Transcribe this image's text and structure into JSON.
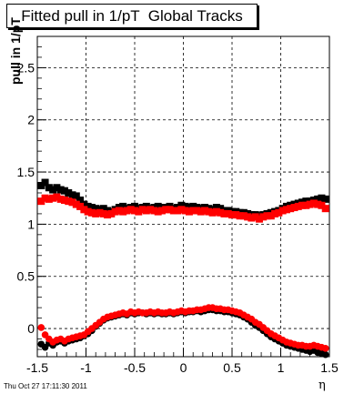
{
  "chart_data": {
    "type": "scatter",
    "title": "Fitted pull in 1/pT  Global Tracks",
    "xlabel": "η",
    "ylabel": "pull in 1/pT",
    "timestamp": "Thu Oct 27 17:11:30 2011",
    "xlim": [
      -1.5,
      1.5
    ],
    "ylim": [
      -0.27,
      2.8
    ],
    "xticks": [
      "-1.5",
      "-1",
      "-0.5",
      "0",
      "0.5",
      "1",
      "1.5"
    ],
    "yticks": [
      "0",
      "0.5",
      "1",
      "1.5",
      "2",
      "2.5"
    ],
    "grid": true,
    "series": [
      {
        "color": "#000000",
        "marker": "square",
        "x": [
          -1.46,
          -1.42,
          -1.38,
          -1.34,
          -1.3,
          -1.26,
          -1.22,
          -1.18,
          -1.14,
          -1.1,
          -1.06,
          -1.02,
          -0.98,
          -0.94,
          -0.9,
          -0.86,
          -0.82,
          -0.78,
          -0.74,
          -0.7,
          -0.66,
          -0.62,
          -0.58,
          -0.54,
          -0.5,
          -0.46,
          -0.42,
          -0.38,
          -0.34,
          -0.3,
          -0.26,
          -0.22,
          -0.18,
          -0.14,
          -0.1,
          -0.06,
          -0.02,
          0.02,
          0.06,
          0.1,
          0.14,
          0.18,
          0.22,
          0.26,
          0.3,
          0.34,
          0.38,
          0.42,
          0.46,
          0.5,
          0.54,
          0.58,
          0.62,
          0.66,
          0.7,
          0.74,
          0.78,
          0.82,
          0.86,
          0.9,
          0.94,
          0.98,
          1.02,
          1.06,
          1.1,
          1.14,
          1.18,
          1.22,
          1.26,
          1.3,
          1.34,
          1.38,
          1.42,
          1.46
        ],
        "y": [
          1.37,
          1.4,
          1.35,
          1.33,
          1.35,
          1.33,
          1.32,
          1.3,
          1.28,
          1.27,
          1.23,
          1.19,
          1.17,
          1.16,
          1.15,
          1.14,
          1.15,
          1.13,
          1.12,
          1.14,
          1.16,
          1.17,
          1.15,
          1.16,
          1.17,
          1.15,
          1.16,
          1.17,
          1.15,
          1.16,
          1.17,
          1.16,
          1.16,
          1.17,
          1.15,
          1.16,
          1.18,
          1.17,
          1.16,
          1.17,
          1.16,
          1.15,
          1.16,
          1.15,
          1.14,
          1.16,
          1.15,
          1.13,
          1.13,
          1.12,
          1.12,
          1.11,
          1.11,
          1.1,
          1.09,
          1.09,
          1.08,
          1.09,
          1.1,
          1.11,
          1.12,
          1.13,
          1.15,
          1.17,
          1.18,
          1.19,
          1.2,
          1.21,
          1.22,
          1.22,
          1.23,
          1.24,
          1.25,
          1.24
        ]
      },
      {
        "color": "#ff0000",
        "marker": "square",
        "x": [
          -1.46,
          -1.42,
          -1.38,
          -1.34,
          -1.3,
          -1.26,
          -1.22,
          -1.18,
          -1.14,
          -1.1,
          -1.06,
          -1.02,
          -0.98,
          -0.94,
          -0.9,
          -0.86,
          -0.82,
          -0.78,
          -0.74,
          -0.7,
          -0.66,
          -0.62,
          -0.58,
          -0.54,
          -0.5,
          -0.46,
          -0.42,
          -0.38,
          -0.34,
          -0.3,
          -0.26,
          -0.22,
          -0.18,
          -0.14,
          -0.1,
          -0.06,
          -0.02,
          0.02,
          0.06,
          0.1,
          0.14,
          0.18,
          0.22,
          0.26,
          0.3,
          0.34,
          0.38,
          0.42,
          0.46,
          0.5,
          0.54,
          0.58,
          0.62,
          0.66,
          0.7,
          0.74,
          0.78,
          0.82,
          0.86,
          0.9,
          0.94,
          0.98,
          1.02,
          1.06,
          1.1,
          1.14,
          1.18,
          1.22,
          1.26,
          1.3,
          1.34,
          1.38,
          1.42,
          1.46
        ],
        "y": [
          1.22,
          1.25,
          1.24,
          1.25,
          1.26,
          1.24,
          1.23,
          1.22,
          1.21,
          1.19,
          1.17,
          1.14,
          1.12,
          1.11,
          1.1,
          1.11,
          1.1,
          1.09,
          1.1,
          1.12,
          1.13,
          1.12,
          1.13,
          1.14,
          1.13,
          1.12,
          1.14,
          1.13,
          1.14,
          1.13,
          1.12,
          1.13,
          1.14,
          1.14,
          1.13,
          1.13,
          1.14,
          1.13,
          1.12,
          1.13,
          1.13,
          1.12,
          1.13,
          1.12,
          1.11,
          1.12,
          1.11,
          1.1,
          1.1,
          1.09,
          1.09,
          1.08,
          1.08,
          1.07,
          1.06,
          1.07,
          1.05,
          1.07,
          1.08,
          1.08,
          1.1,
          1.11,
          1.13,
          1.14,
          1.15,
          1.16,
          1.17,
          1.18,
          1.18,
          1.19,
          1.2,
          1.19,
          1.18,
          1.15
        ]
      },
      {
        "color": "#000000",
        "marker": "circle",
        "x": [
          -1.46,
          -1.42,
          -1.38,
          -1.34,
          -1.3,
          -1.26,
          -1.22,
          -1.18,
          -1.14,
          -1.1,
          -1.06,
          -1.02,
          -0.98,
          -0.94,
          -0.9,
          -0.86,
          -0.82,
          -0.78,
          -0.74,
          -0.7,
          -0.66,
          -0.62,
          -0.58,
          -0.54,
          -0.5,
          -0.46,
          -0.42,
          -0.38,
          -0.34,
          -0.3,
          -0.26,
          -0.22,
          -0.18,
          -0.14,
          -0.1,
          -0.06,
          -0.02,
          0.02,
          0.06,
          0.1,
          0.14,
          0.18,
          0.22,
          0.26,
          0.3,
          0.34,
          0.38,
          0.42,
          0.46,
          0.5,
          0.54,
          0.58,
          0.62,
          0.66,
          0.7,
          0.74,
          0.78,
          0.82,
          0.86,
          0.9,
          0.94,
          0.98,
          1.02,
          1.06,
          1.1,
          1.14,
          1.18,
          1.22,
          1.26,
          1.3,
          1.34,
          1.38,
          1.42,
          1.46
        ],
        "y": [
          -0.15,
          -0.18,
          -0.14,
          -0.16,
          -0.13,
          -0.12,
          -0.14,
          -0.12,
          -0.11,
          -0.1,
          -0.09,
          -0.07,
          -0.05,
          -0.02,
          0.02,
          0.05,
          0.08,
          0.1,
          0.11,
          0.12,
          0.13,
          0.14,
          0.13,
          0.15,
          0.14,
          0.15,
          0.15,
          0.14,
          0.15,
          0.14,
          0.15,
          0.14,
          0.14,
          0.15,
          0.14,
          0.15,
          0.16,
          0.15,
          0.16,
          0.16,
          0.17,
          0.16,
          0.17,
          0.18,
          0.18,
          0.17,
          0.17,
          0.16,
          0.16,
          0.15,
          0.14,
          0.13,
          0.11,
          0.09,
          0.06,
          0.03,
          0.01,
          -0.02,
          -0.05,
          -0.08,
          -0.1,
          -0.12,
          -0.14,
          -0.16,
          -0.17,
          -0.18,
          -0.19,
          -0.2,
          -0.21,
          -0.22,
          -0.21,
          -0.23,
          -0.24,
          -0.25
        ]
      },
      {
        "color": "#ff0000",
        "marker": "circle",
        "x": [
          -1.46,
          -1.42,
          -1.38,
          -1.34,
          -1.3,
          -1.26,
          -1.22,
          -1.18,
          -1.14,
          -1.1,
          -1.06,
          -1.02,
          -0.98,
          -0.94,
          -0.9,
          -0.86,
          -0.82,
          -0.78,
          -0.74,
          -0.7,
          -0.66,
          -0.62,
          -0.58,
          -0.54,
          -0.5,
          -0.46,
          -0.42,
          -0.38,
          -0.34,
          -0.3,
          -0.26,
          -0.22,
          -0.18,
          -0.14,
          -0.1,
          -0.06,
          -0.02,
          0.02,
          0.06,
          0.1,
          0.14,
          0.18,
          0.22,
          0.26,
          0.3,
          0.34,
          0.38,
          0.42,
          0.46,
          0.5,
          0.54,
          0.58,
          0.62,
          0.66,
          0.7,
          0.74,
          0.78,
          0.82,
          0.86,
          0.9,
          0.94,
          0.98,
          1.02,
          1.06,
          1.1,
          1.14,
          1.18,
          1.22,
          1.26,
          1.3,
          1.34,
          1.38,
          1.42,
          1.46
        ],
        "y": [
          0.01,
          -0.06,
          -0.1,
          -0.13,
          -0.11,
          -0.1,
          -0.12,
          -0.1,
          -0.09,
          -0.08,
          -0.07,
          -0.06,
          -0.03,
          0.0,
          0.03,
          0.06,
          0.09,
          0.11,
          0.12,
          0.13,
          0.14,
          0.15,
          0.14,
          0.16,
          0.15,
          0.16,
          0.15,
          0.15,
          0.16,
          0.15,
          0.16,
          0.15,
          0.15,
          0.16,
          0.15,
          0.16,
          0.17,
          0.16,
          0.17,
          0.17,
          0.18,
          0.18,
          0.19,
          0.2,
          0.2,
          0.19,
          0.19,
          0.18,
          0.18,
          0.17,
          0.16,
          0.15,
          0.13,
          0.11,
          0.09,
          0.06,
          0.04,
          0.01,
          -0.02,
          -0.05,
          -0.07,
          -0.09,
          -0.11,
          -0.13,
          -0.14,
          -0.15,
          -0.16,
          -0.16,
          -0.17,
          -0.17,
          -0.16,
          -0.17,
          -0.18,
          -0.19
        ]
      }
    ]
  }
}
